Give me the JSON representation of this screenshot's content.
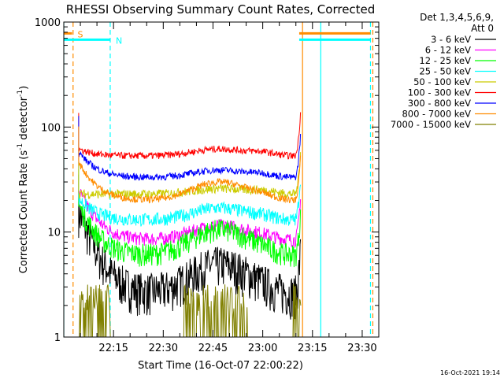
{
  "chart_data": {
    "type": "line",
    "title": "RHESSI Observing Summary Count Rates, Corrected",
    "xlabel": "Start Time (16-Oct-07 22:00:22)",
    "ylabel": "Corrected Count Rate (s",
    "ylabel_sup1": "-1",
    "ylabel_mid": " detector",
    "ylabel_sup2": "-1",
    "ylabel_end": ")",
    "x_unit": "minutes from 22:00:22",
    "xlim": [
      0,
      95
    ],
    "ylim": [
      1,
      1000
    ],
    "y_scale": "log",
    "x_ticks": [
      {
        "label": "22:15",
        "value": 15
      },
      {
        "label": "22:30",
        "value": 30
      },
      {
        "label": "22:45",
        "value": 45
      },
      {
        "label": "23:00",
        "value": 60
      },
      {
        "label": "23:15",
        "value": 75
      },
      {
        "label": "23:30",
        "value": 90
      }
    ],
    "y_ticks": [
      {
        "label": "1",
        "value": 1
      },
      {
        "label": "10",
        "value": 10
      },
      {
        "label": "100",
        "value": 100
      },
      {
        "label": "1000",
        "value": 1000
      }
    ],
    "legend_header": [
      "Det 1,3,4,5,6,9,",
      "Att 0"
    ],
    "legend_position": "right",
    "series": [
      {
        "name": "3 - 6 keV",
        "color": "#000000",
        "base": 2.6,
        "bump": 2.4,
        "start_level": 16,
        "noise": 0.18
      },
      {
        "name": "6 - 12 keV",
        "color": "#ff00ff",
        "base": 8.4,
        "bump": 3.2,
        "start_level": 25,
        "noise": 0.06
      },
      {
        "name": "12 - 25 keV",
        "color": "#00ff00",
        "base": 6.0,
        "bump": 4.6,
        "start_level": 18,
        "noise": 0.1
      },
      {
        "name": "25 - 50 keV",
        "color": "#00ffff",
        "base": 13.0,
        "bump": 4.0,
        "start_level": 21,
        "noise": 0.06
      },
      {
        "name": "50 - 100 keV",
        "color": "#cccc00",
        "base": 23.0,
        "bump": 3.0,
        "start_level": 23,
        "noise": 0.04
      },
      {
        "name": "100 - 300 keV",
        "color": "#ff0000",
        "base": 53.0,
        "bump": 9.0,
        "start_level": 62,
        "noise": 0.03
      },
      {
        "name": "300 - 800 keV",
        "color": "#0000ff",
        "base": 33.0,
        "bump": 6.0,
        "start_level": 58,
        "noise": 0.03
      },
      {
        "name": "800 - 7000 keV",
        "color": "#ff8c00",
        "base": 20.0,
        "bump": 10.0,
        "start_level": 46,
        "noise": 0.03
      },
      {
        "name": "7000 - 15000 keV",
        "color": "#808000",
        "base": 1.2,
        "bump": 0,
        "start_level": 1,
        "noise": 0
      }
    ],
    "flag_bars": [
      {
        "label": "S",
        "color": "#ff8c00",
        "x_start": 0,
        "x_end": 2.5,
        "y": 780
      },
      {
        "label": "N",
        "color": "#00ffff",
        "x_start": 0,
        "x_end": 14,
        "y": 680
      },
      {
        "label": "",
        "color": "#ff8c00",
        "x_start": 71,
        "x_end": 92.5,
        "y": 780
      },
      {
        "label": "",
        "color": "#00ffff",
        "x_start": 71,
        "x_end": 92.5,
        "y": 680
      }
    ],
    "vlines": [
      {
        "x": 0,
        "color": "#00ffff",
        "style": "solid"
      },
      {
        "x": 2.8,
        "color": "#ff8c00",
        "style": "dashed"
      },
      {
        "x": 14,
        "color": "#00ffff",
        "style": "dashed"
      },
      {
        "x": 72,
        "color": "#ff8c00",
        "style": "solid"
      },
      {
        "x": 77.5,
        "color": "#00ffff",
        "style": "solid"
      },
      {
        "x": 92.5,
        "color": "#00ffff",
        "style": "dashed"
      },
      {
        "x": 93.2,
        "color": "#ff8c00",
        "style": "dashed"
      }
    ],
    "footer": "16-Oct-2021 19:14"
  }
}
